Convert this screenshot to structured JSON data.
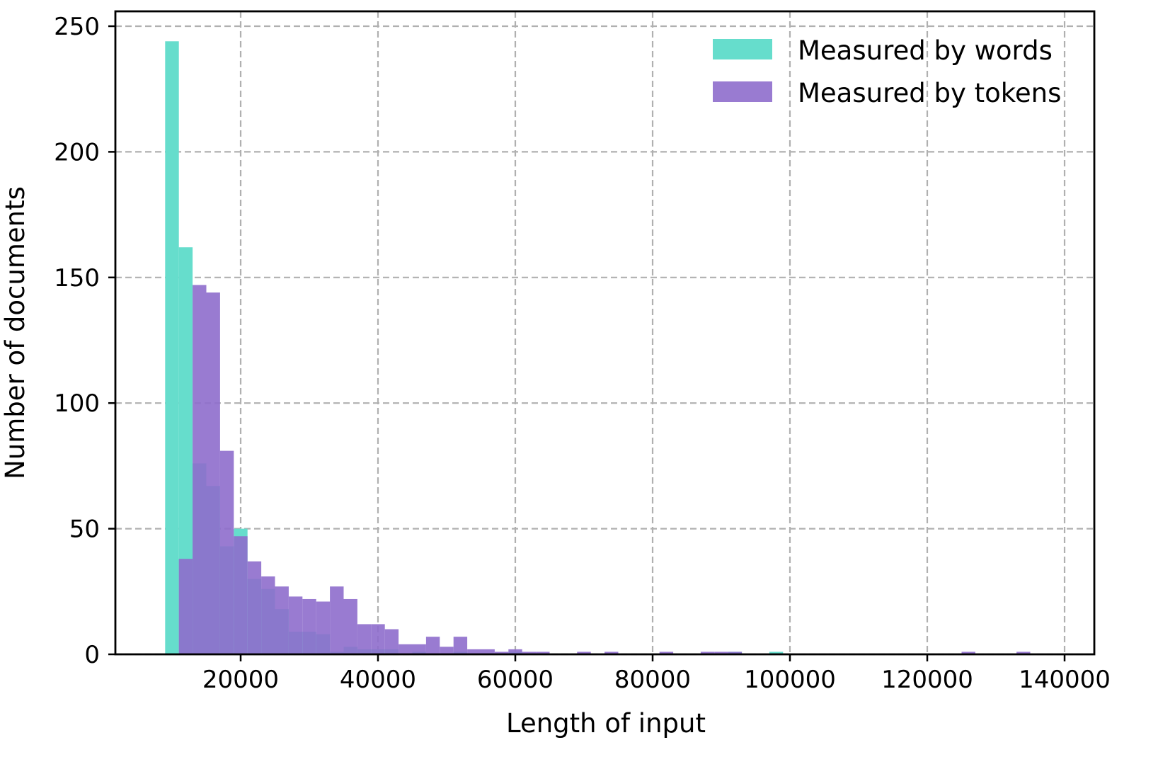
{
  "chart_data": {
    "type": "histogram",
    "xlabel": "Length of input",
    "ylabel": "Number of documents",
    "xlim": [
      2000,
      143000
    ],
    "ylim": [
      0,
      260
    ],
    "x_ticks": [
      20000,
      40000,
      60000,
      80000,
      100000,
      120000,
      140000
    ],
    "x_tick_labels": [
      "20000",
      "40000",
      "60000",
      "80000",
      "100000",
      "120000",
      "140000"
    ],
    "y_ticks": [
      0,
      50,
      100,
      150,
      200,
      250
    ],
    "y_tick_labels": [
      "0",
      "50",
      "100",
      "150",
      "200",
      "250"
    ],
    "grid": true,
    "legend_position": "top-right",
    "series": [
      {
        "name": "Measured by words",
        "color": "#66ddcc",
        "bins": [
          {
            "x0": 9000,
            "x1": 11000,
            "count": 244
          },
          {
            "x0": 11000,
            "x1": 13000,
            "count": 162
          },
          {
            "x0": 13000,
            "x1": 15000,
            "count": 76
          },
          {
            "x0": 15000,
            "x1": 17000,
            "count": 67
          },
          {
            "x0": 17000,
            "x1": 19000,
            "count": 43
          },
          {
            "x0": 19000,
            "x1": 21000,
            "count": 50
          },
          {
            "x0": 21000,
            "x1": 23000,
            "count": 30
          },
          {
            "x0": 23000,
            "x1": 25000,
            "count": 26
          },
          {
            "x0": 25000,
            "x1": 27000,
            "count": 18
          },
          {
            "x0": 27000,
            "x1": 29000,
            "count": 9
          },
          {
            "x0": 29000,
            "x1": 31000,
            "count": 9
          },
          {
            "x0": 31000,
            "x1": 33000,
            "count": 8
          },
          {
            "x0": 33000,
            "x1": 35000,
            "count": 1
          },
          {
            "x0": 35000,
            "x1": 37000,
            "count": 3
          },
          {
            "x0": 37000,
            "x1": 39000,
            "count": 2
          },
          {
            "x0": 39000,
            "x1": 41000,
            "count": 2
          },
          {
            "x0": 41000,
            "x1": 43000,
            "count": 2
          },
          {
            "x0": 45000,
            "x1": 47000,
            "count": 1
          },
          {
            "x0": 51000,
            "x1": 53000,
            "count": 1
          },
          {
            "x0": 59000,
            "x1": 61000,
            "count": 1
          },
          {
            "x0": 91000,
            "x1": 93000,
            "count": 1
          },
          {
            "x0": 97000,
            "x1": 99000,
            "count": 1
          }
        ]
      },
      {
        "name": "Measured by tokens",
        "color": "#8e6dcc",
        "bins": [
          {
            "x0": 11000,
            "x1": 13000,
            "count": 38
          },
          {
            "x0": 13000,
            "x1": 15000,
            "count": 147
          },
          {
            "x0": 15000,
            "x1": 17000,
            "count": 144
          },
          {
            "x0": 17000,
            "x1": 19000,
            "count": 81
          },
          {
            "x0": 19000,
            "x1": 21000,
            "count": 47
          },
          {
            "x0": 21000,
            "x1": 23000,
            "count": 37
          },
          {
            "x0": 23000,
            "x1": 25000,
            "count": 31
          },
          {
            "x0": 25000,
            "x1": 27000,
            "count": 27
          },
          {
            "x0": 27000,
            "x1": 29000,
            "count": 23
          },
          {
            "x0": 29000,
            "x1": 31000,
            "count": 22
          },
          {
            "x0": 31000,
            "x1": 33000,
            "count": 21
          },
          {
            "x0": 33000,
            "x1": 35000,
            "count": 27
          },
          {
            "x0": 35000,
            "x1": 37000,
            "count": 22
          },
          {
            "x0": 37000,
            "x1": 39000,
            "count": 12
          },
          {
            "x0": 39000,
            "x1": 41000,
            "count": 12
          },
          {
            "x0": 41000,
            "x1": 43000,
            "count": 10
          },
          {
            "x0": 43000,
            "x1": 45000,
            "count": 4
          },
          {
            "x0": 45000,
            "x1": 47000,
            "count": 4
          },
          {
            "x0": 47000,
            "x1": 49000,
            "count": 7
          },
          {
            "x0": 49000,
            "x1": 51000,
            "count": 3
          },
          {
            "x0": 51000,
            "x1": 53000,
            "count": 7
          },
          {
            "x0": 53000,
            "x1": 55000,
            "count": 2
          },
          {
            "x0": 55000,
            "x1": 57000,
            "count": 2
          },
          {
            "x0": 57000,
            "x1": 59000,
            "count": 1
          },
          {
            "x0": 59000,
            "x1": 61000,
            "count": 2
          },
          {
            "x0": 61000,
            "x1": 63000,
            "count": 1
          },
          {
            "x0": 63000,
            "x1": 65000,
            "count": 1
          },
          {
            "x0": 69000,
            "x1": 71000,
            "count": 1
          },
          {
            "x0": 73000,
            "x1": 75000,
            "count": 1
          },
          {
            "x0": 81000,
            "x1": 83000,
            "count": 1
          },
          {
            "x0": 87000,
            "x1": 89000,
            "count": 1
          },
          {
            "x0": 89000,
            "x1": 91000,
            "count": 1
          },
          {
            "x0": 91000,
            "x1": 93000,
            "count": 1
          },
          {
            "x0": 125000,
            "x1": 127000,
            "count": 1
          },
          {
            "x0": 133000,
            "x1": 135000,
            "count": 1
          }
        ]
      }
    ]
  }
}
